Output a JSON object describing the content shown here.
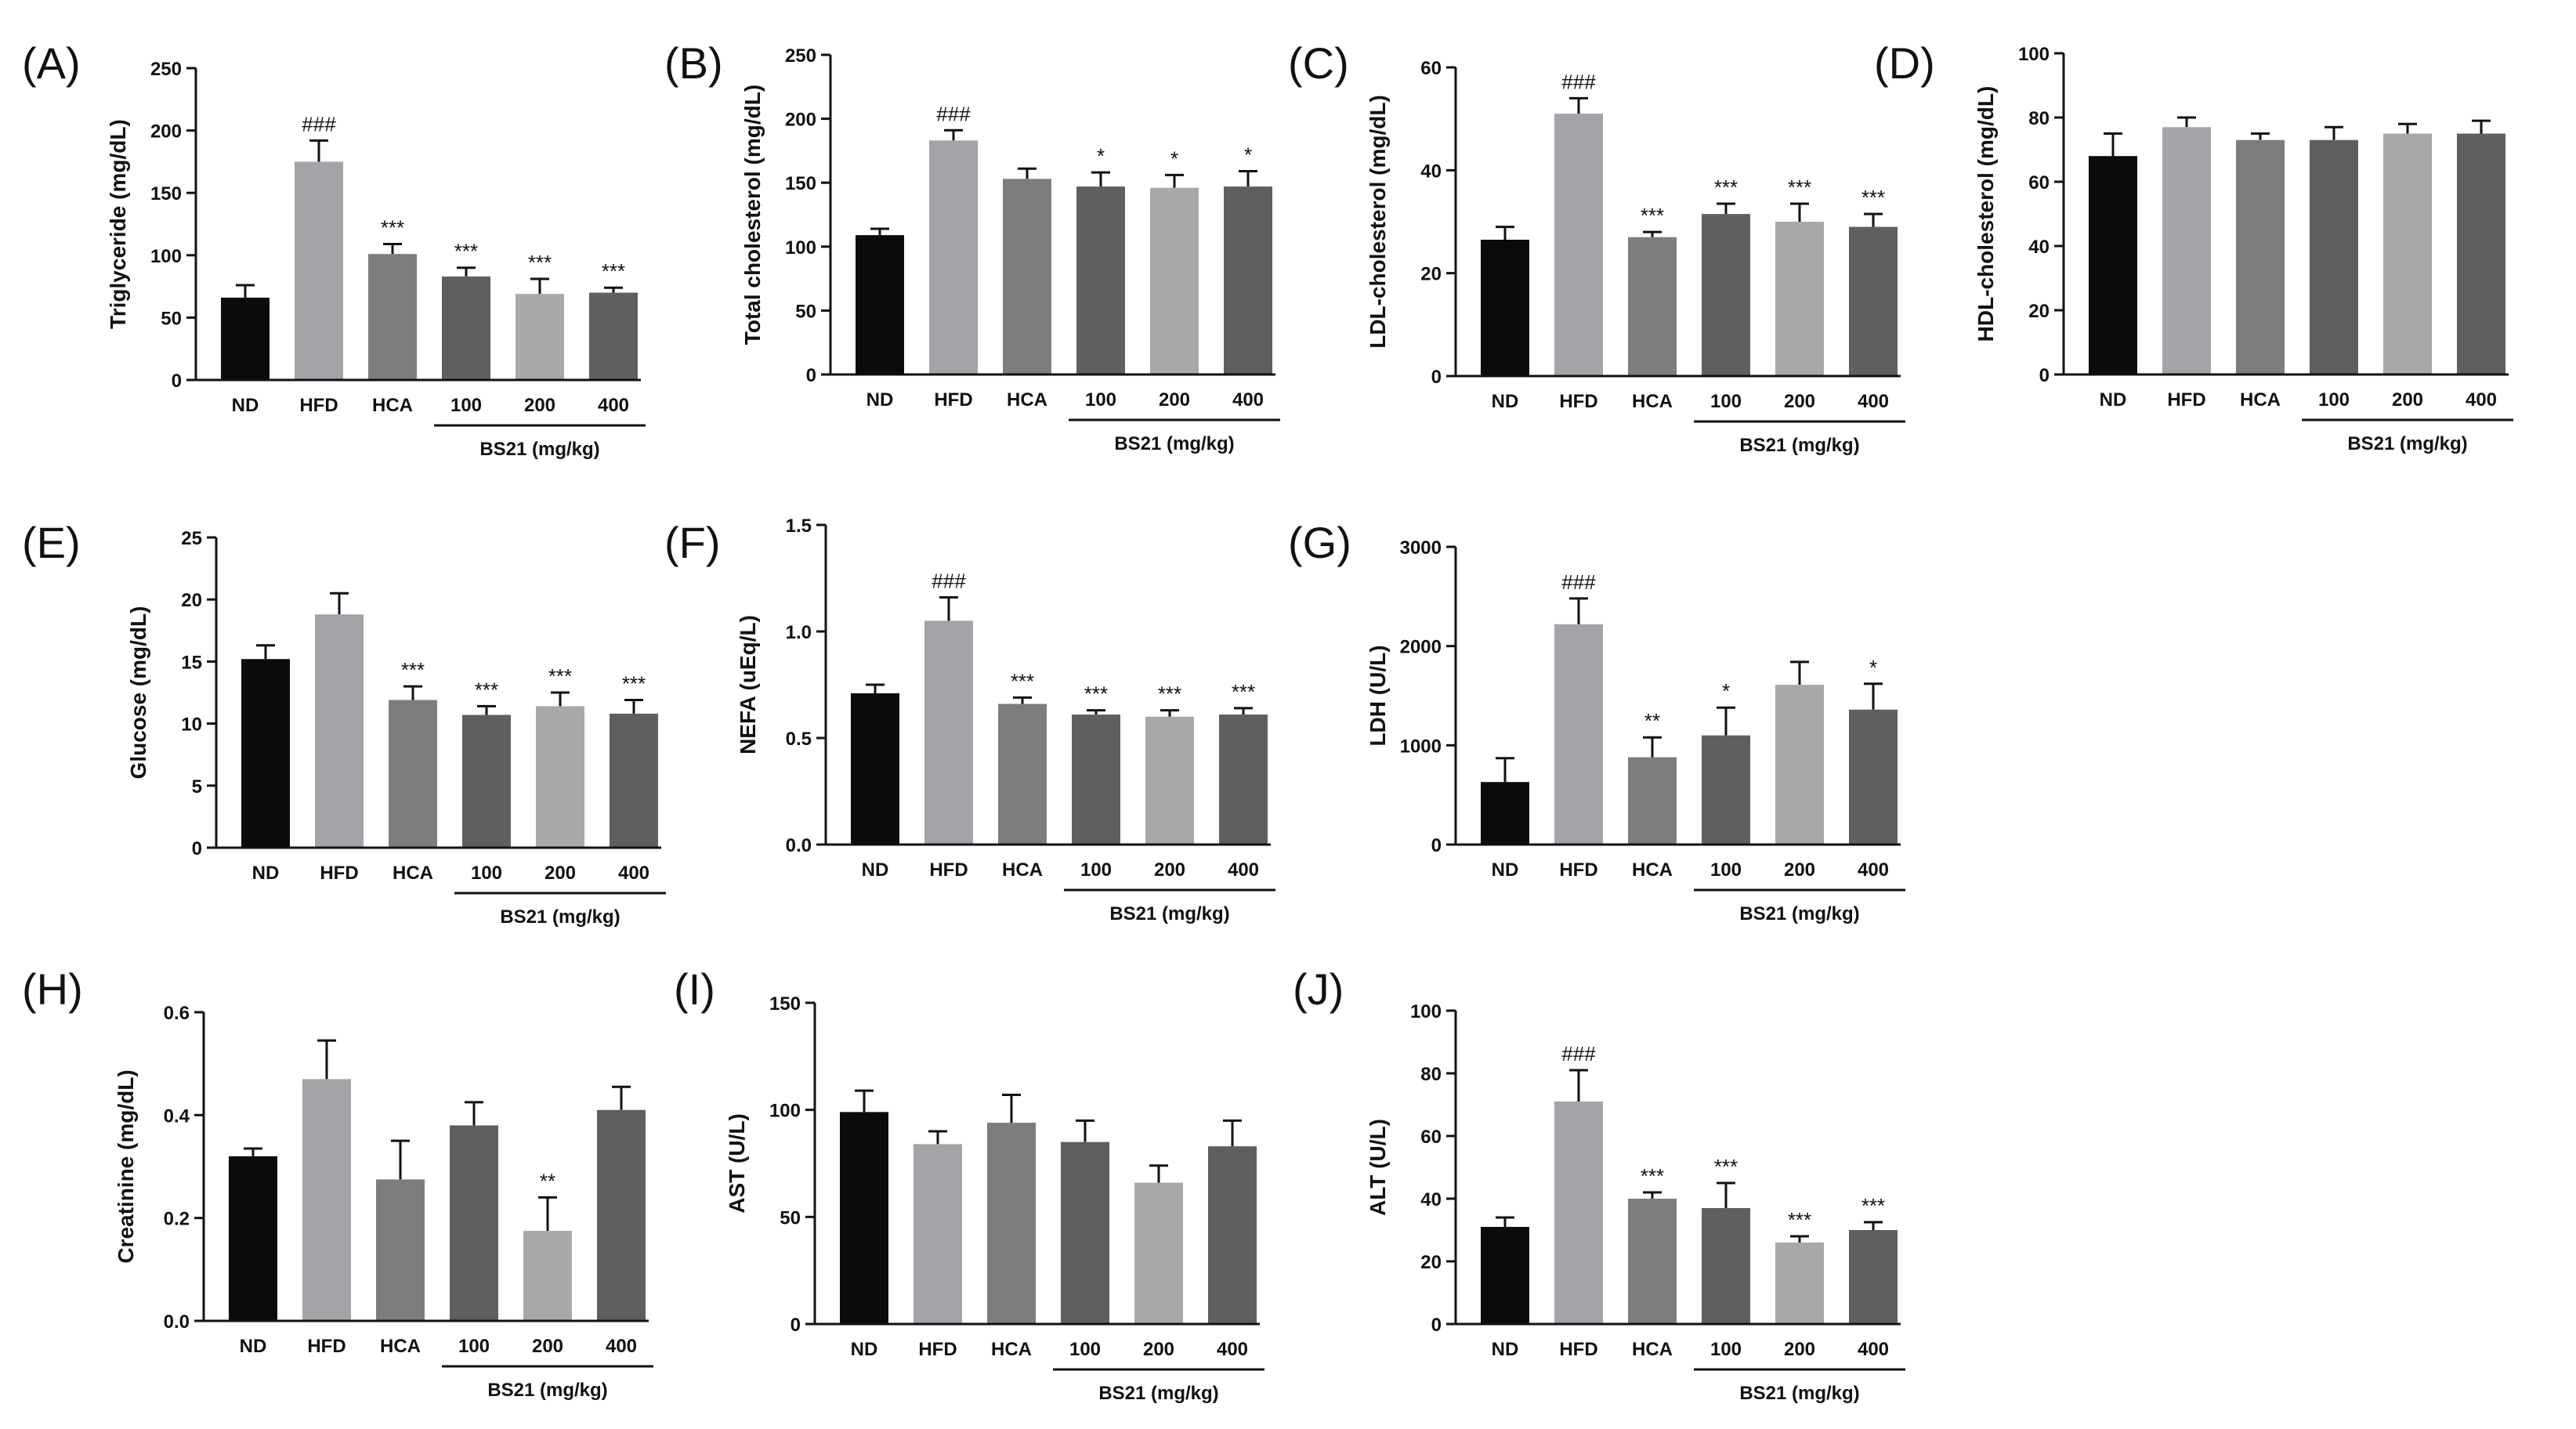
{
  "group_label": "BS21 (mg/kg)",
  "colors": {
    "ND": "#0b0b0b",
    "HFD": "#a3a3a8",
    "HCA": "#7d7d7d",
    "100": "#5f5f61",
    "200": "#a8a8ab",
    "400": "#5f5f61"
  },
  "chart_data": [
    {
      "type": "bar",
      "panel": "(A)",
      "ylabel": "Triglyceride (mg/dL)",
      "categories": [
        "ND",
        "HFD",
        "HCA",
        "100",
        "200",
        "400"
      ],
      "values": [
        66,
        175,
        101,
        83,
        69,
        70
      ],
      "errors": [
        10,
        17,
        8,
        7,
        12,
        4
      ],
      "annotations": [
        "",
        "###",
        "***",
        "***",
        "***",
        "***"
      ],
      "ylim": [
        0,
        250
      ],
      "yticks": [
        0,
        50,
        100,
        150,
        200,
        250
      ],
      "yticklabels": [
        "0",
        "50",
        "100",
        "150",
        "200",
        "250"
      ]
    },
    {
      "type": "bar",
      "panel": "(B)",
      "ylabel": "Total cholesterol (mg/dL)",
      "categories": [
        "ND",
        "HFD",
        "HCA",
        "100",
        "200",
        "400"
      ],
      "values": [
        109,
        183,
        153,
        147,
        146,
        147
      ],
      "errors": [
        5,
        8,
        8,
        11,
        10,
        12
      ],
      "annotations": [
        "",
        "###",
        "",
        "*",
        "*",
        "*"
      ],
      "ylim": [
        0,
        250
      ],
      "yticks": [
        0,
        50,
        100,
        150,
        200,
        250
      ],
      "yticklabels": [
        "0",
        "50",
        "100",
        "150",
        "200",
        "250"
      ]
    },
    {
      "type": "bar",
      "panel": "(C)",
      "ylabel": "LDL-cholesterol (mg/dL)",
      "categories": [
        "ND",
        "HFD",
        "HCA",
        "100",
        "200",
        "400"
      ],
      "values": [
        26.5,
        51,
        27,
        31.5,
        30,
        29
      ],
      "errors": [
        2.5,
        3,
        1,
        2,
        3.5,
        2.5
      ],
      "annotations": [
        "",
        "###",
        "***",
        "***",
        "***",
        "***"
      ],
      "ylim": [
        0,
        60
      ],
      "yticks": [
        0,
        20,
        40,
        60
      ],
      "yticklabels": [
        "0",
        "20",
        "40",
        "60"
      ]
    },
    {
      "type": "bar",
      "panel": "(D)",
      "ylabel": "HDL-cholesterol (mg/dL)",
      "categories": [
        "ND",
        "HFD",
        "HCA",
        "100",
        "200",
        "400"
      ],
      "values": [
        68,
        77,
        73,
        73,
        75,
        75
      ],
      "errors": [
        7,
        3,
        2,
        4,
        3,
        4
      ],
      "annotations": [
        "",
        "",
        "",
        "",
        "",
        ""
      ],
      "ylim": [
        0,
        100
      ],
      "yticks": [
        0,
        20,
        40,
        60,
        80,
        100
      ],
      "yticklabels": [
        "0",
        "20",
        "40",
        "60",
        "80",
        "100"
      ]
    },
    {
      "type": "bar",
      "panel": "(E)",
      "ylabel": "Glucose (mg/dL)",
      "categories": [
        "ND",
        "HFD",
        "HCA",
        "100",
        "200",
        "400"
      ],
      "values": [
        15.2,
        18.8,
        11.9,
        10.7,
        11.4,
        10.8
      ],
      "errors": [
        1.1,
        1.7,
        1.1,
        0.7,
        1.1,
        1.1
      ],
      "annotations": [
        "",
        "",
        "***",
        "***",
        "***",
        "***"
      ],
      "ylim": [
        0,
        25
      ],
      "yticks": [
        0,
        5,
        10,
        15,
        20,
        25
      ],
      "yticklabels": [
        "0",
        "5",
        "10",
        "15",
        "20",
        "25"
      ]
    },
    {
      "type": "bar",
      "panel": "(F)",
      "ylabel": "NEFA (uEq/L)",
      "categories": [
        "ND",
        "HFD",
        "HCA",
        "100",
        "200",
        "400"
      ],
      "values": [
        0.71,
        1.05,
        0.66,
        0.61,
        0.6,
        0.61
      ],
      "errors": [
        0.04,
        0.11,
        0.03,
        0.02,
        0.03,
        0.03
      ],
      "annotations": [
        "",
        "###",
        "***",
        "***",
        "***",
        "***"
      ],
      "ylim": [
        0,
        1.5
      ],
      "yticks": [
        0,
        0.5,
        1.0,
        1.5
      ],
      "yticklabels": [
        "0.0",
        "0.5",
        "1.0",
        "1.5"
      ]
    },
    {
      "type": "bar",
      "panel": "(G)",
      "ylabel": "LDH (U/L)",
      "categories": [
        "ND",
        "HFD",
        "HCA",
        "100",
        "200",
        "400"
      ],
      "values": [
        630,
        2220,
        880,
        1100,
        1610,
        1360
      ],
      "errors": [
        240,
        260,
        200,
        280,
        230,
        260
      ],
      "annotations": [
        "",
        "###",
        "**",
        "*",
        "",
        "*"
      ],
      "ylim": [
        0,
        3000
      ],
      "yticks": [
        0,
        1000,
        2000,
        3000
      ],
      "yticklabels": [
        "0",
        "1000",
        "2000",
        "3000"
      ]
    },
    {
      "type": "bar",
      "panel": "(H)",
      "ylabel": "Creatinine (mg/dL)",
      "categories": [
        "ND",
        "HFD",
        "HCA",
        "100",
        "200",
        "400"
      ],
      "values": [
        0.32,
        0.47,
        0.275,
        0.38,
        0.175,
        0.41
      ],
      "errors": [
        0.015,
        0.075,
        0.075,
        0.045,
        0.065,
        0.045
      ],
      "annotations": [
        "",
        "",
        "",
        "",
        "**",
        ""
      ],
      "ylim": [
        0,
        0.6
      ],
      "yticks": [
        0,
        0.2,
        0.4,
        0.6
      ],
      "yticklabels": [
        "0.0",
        "0.2",
        "0.4",
        "0.6"
      ]
    },
    {
      "type": "bar",
      "panel": "(I)",
      "ylabel": "AST (U/L)",
      "categories": [
        "ND",
        "HFD",
        "HCA",
        "100",
        "200",
        "400"
      ],
      "values": [
        99,
        84,
        94,
        85,
        66,
        83
      ],
      "errors": [
        10,
        6,
        13,
        10,
        8,
        12
      ],
      "annotations": [
        "",
        "",
        "",
        "",
        "",
        ""
      ],
      "ylim": [
        0,
        150
      ],
      "yticks": [
        0,
        50,
        100,
        150
      ],
      "yticklabels": [
        "0",
        "50",
        "100",
        "150"
      ]
    },
    {
      "type": "bar",
      "panel": "(J)",
      "ylabel": "ALT (U/L)",
      "categories": [
        "ND",
        "HFD",
        "HCA",
        "100",
        "200",
        "400"
      ],
      "values": [
        31,
        71,
        40,
        37,
        26,
        30
      ],
      "errors": [
        3,
        10,
        2,
        8,
        2,
        2.5
      ],
      "annotations": [
        "",
        "###",
        "***",
        "***",
        "***",
        "***"
      ],
      "ylim": [
        0,
        100
      ],
      "yticks": [
        0,
        20,
        40,
        60,
        80,
        100
      ],
      "yticklabels": [
        "0",
        "20",
        "40",
        "60",
        "80",
        "100"
      ]
    }
  ]
}
